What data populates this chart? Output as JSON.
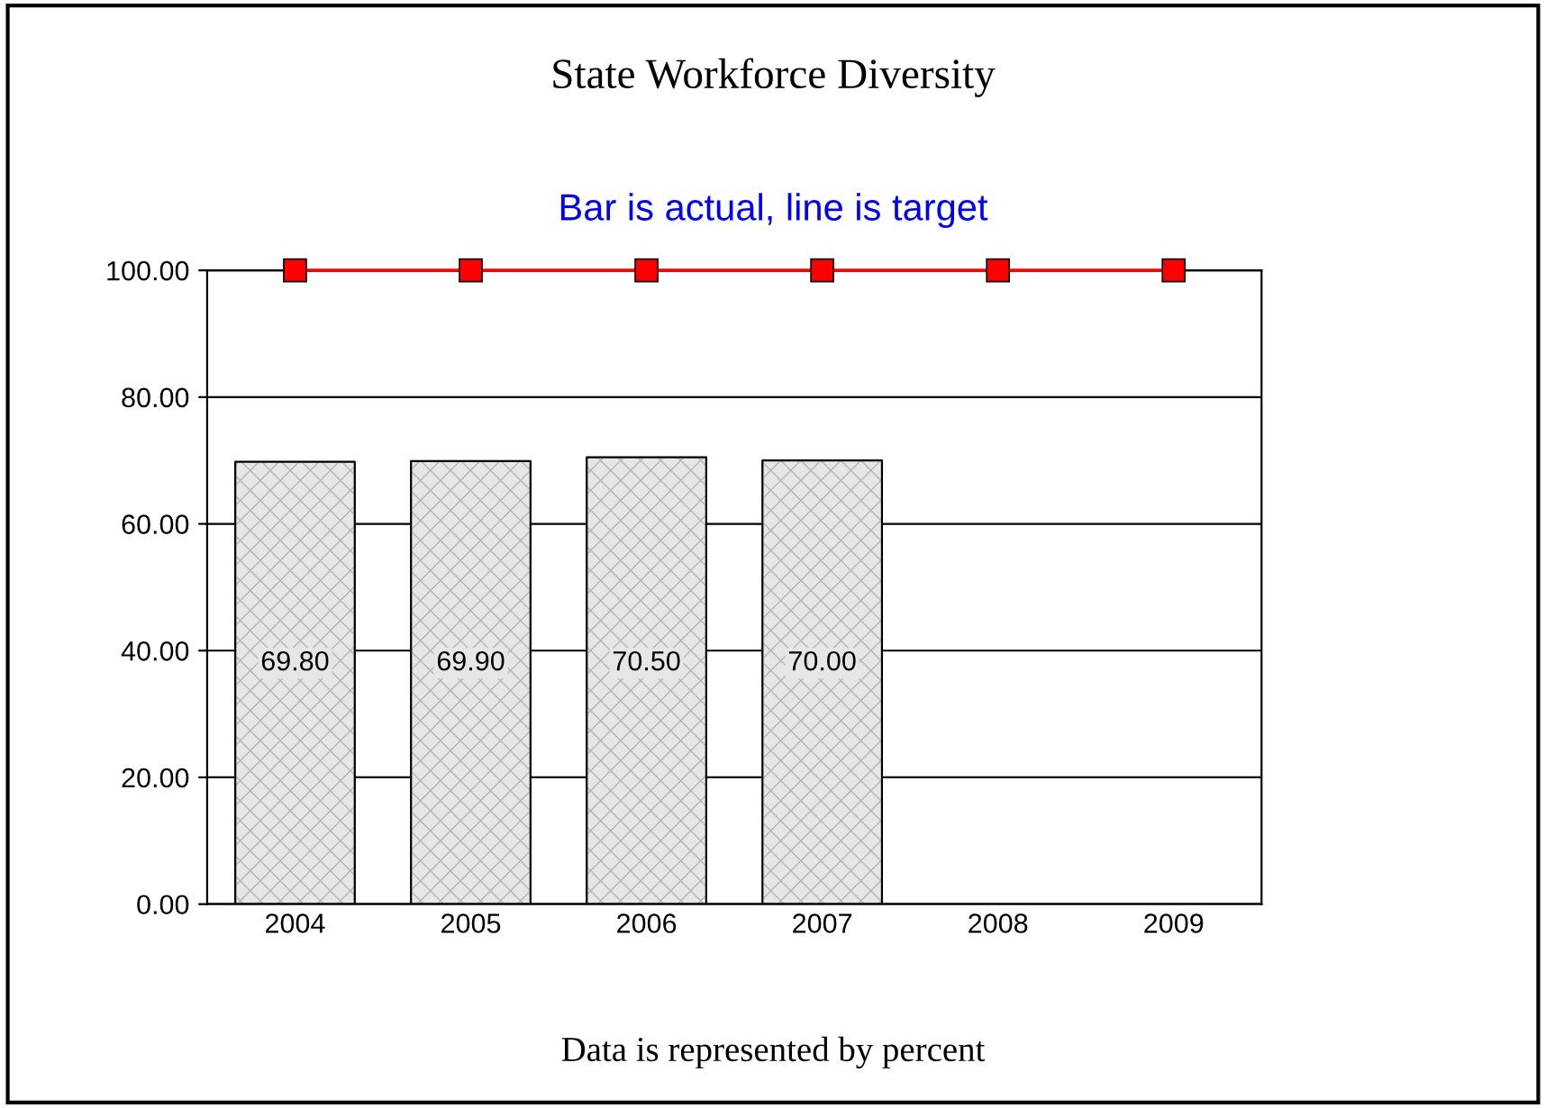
{
  "chart_data": {
    "type": "bar",
    "title": "State Workforce Diversity",
    "subtitle": "Bar is actual, line is target",
    "categories": [
      "2004",
      "2005",
      "2006",
      "2007",
      "2008",
      "2009"
    ],
    "series": [
      {
        "color": "#e6e6e6",
        "values": [
          69.8,
          69.9,
          70.5,
          70.0,
          null,
          null
        ],
        "value_labels": [
          "69.80",
          "69.90",
          "70.50",
          "70.00",
          null,
          null
        ]
      },
      {
        "type": "line",
        "color": "#ff0000",
        "values": [
          100,
          100,
          100,
          100,
          100,
          100
        ],
        "marker": "square"
      }
    ],
    "ylim": [
      0,
      100
    ],
    "yticks": [
      {
        "value": 0,
        "label": "0.00"
      },
      {
        "value": 20,
        "label": "20.00"
      },
      {
        "value": 40,
        "label": "40.00"
      },
      {
        "value": 60,
        "label": "60.00"
      },
      {
        "value": 80,
        "label": "80.00"
      },
      {
        "value": 100,
        "label": "100.00"
      }
    ],
    "grid": "y",
    "annotations": [
      "Data is represented by percent"
    ]
  }
}
